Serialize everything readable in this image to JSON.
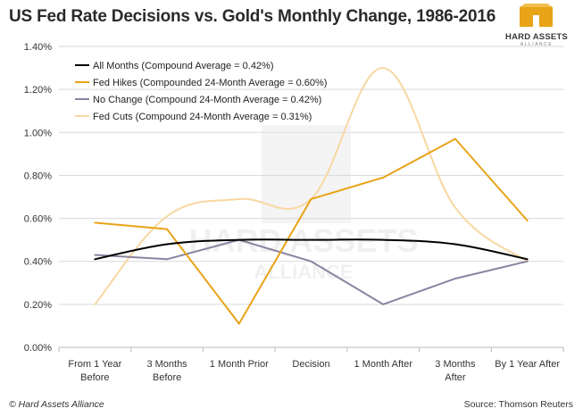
{
  "title": "US Fed Rate Decisions vs. Gold's Monthly Change, 1986-2016",
  "logo": {
    "name": "HARD ASSETS",
    "sub": "ALLIANCE",
    "icon": "hard-assets-logo-icon"
  },
  "watermark": {
    "line1": "HARD ASSETS",
    "line2": "ALLIANCE"
  },
  "footer": {
    "copyright": "© Hard Assets Alliance",
    "source": "Source: Thomson Reuters"
  },
  "colors": {
    "all_months": "#000000",
    "fed_hikes": "#E8A317",
    "no_change": "#8A84A0",
    "fed_cuts": "#F7D7A2",
    "axis": "#b9b9b9",
    "grid": "#d9d9d9"
  },
  "chart_data": {
    "type": "line",
    "title": "US Fed Rate Decisions vs. Gold's Monthly Change, 1986-2016",
    "xlabel": "",
    "ylabel": "",
    "ylim": [
      0,
      1.4
    ],
    "yticks": [
      "0.00%",
      "0.20%",
      "0.40%",
      "0.60%",
      "0.80%",
      "1.00%",
      "1.20%",
      "1.40%"
    ],
    "grid": "horizontal",
    "legend_position": "top-left",
    "categories": [
      [
        "From 1 Year",
        "Before"
      ],
      [
        "3 Months",
        "Before"
      ],
      [
        "1 Month Prior"
      ],
      [
        "Decision"
      ],
      [
        "1 Month After"
      ],
      [
        "3 Months",
        "After"
      ],
      [
        "By 1 Year After"
      ]
    ],
    "series": [
      {
        "name": "All Months (Compound Average = 0.42%)",
        "color": "#000000",
        "smooth": true,
        "values": [
          0.41,
          0.48,
          0.5,
          0.5,
          0.5,
          0.48,
          0.41
        ]
      },
      {
        "name": "Fed Hikes (Compounded 24-Month Average = 0.60%)",
        "color": "#E8A317",
        "smooth": false,
        "values": [
          0.58,
          0.55,
          0.11,
          0.69,
          0.79,
          0.97,
          0.59
        ]
      },
      {
        "name": "No Change (Compound 24-Month Average = 0.42%)",
        "color": "#8A84A0",
        "smooth": false,
        "values": [
          0.43,
          0.41,
          0.5,
          0.4,
          0.2,
          0.32,
          0.4
        ]
      },
      {
        "name": "Fed Cuts (Compound 24-Month Average = 0.31%)",
        "color": "#F7D7A2",
        "smooth": true,
        "values": [
          0.2,
          0.61,
          0.69,
          0.69,
          1.3,
          0.65,
          0.4
        ]
      }
    ]
  }
}
